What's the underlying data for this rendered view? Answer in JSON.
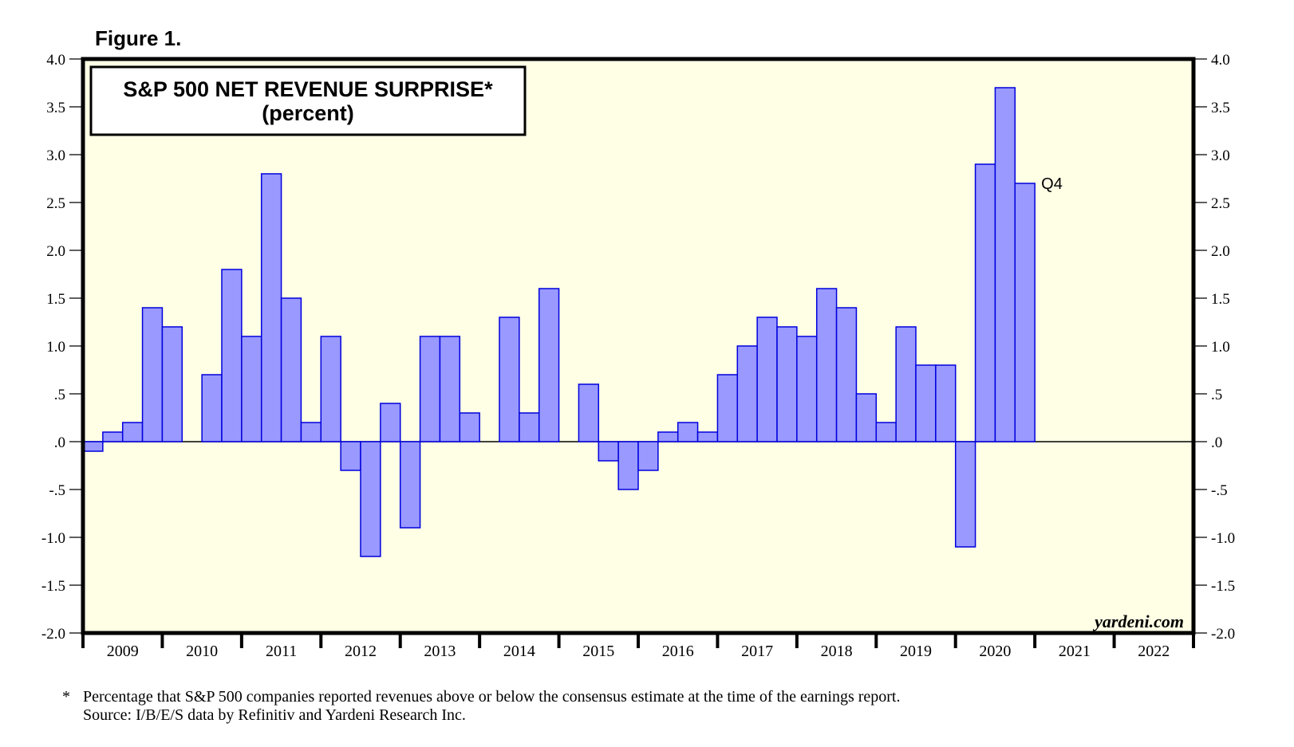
{
  "figure_label": "Figure 1.",
  "brand": "yardeni.com",
  "footnote": {
    "marker": "*",
    "line1": "Percentage that S&P 500 companies reported revenues above or below the consensus estimate at the time of the earnings report.",
    "line2": "Source: I/B/E/S data by Refinitiv and Yardeni Research Inc."
  },
  "colors": {
    "plot_background": "#ffffe6",
    "bar_fill": "#9999ff",
    "bar_stroke": "#0000dd",
    "axis": "#000000"
  },
  "chart_data": {
    "type": "bar",
    "title": "S&P 500 NET REVENUE SURPRISE*",
    "subtitle": "(percent)",
    "xlabel": "",
    "ylabel": "",
    "frequency": "quarterly",
    "ylim": [
      -2.0,
      4.0
    ],
    "yticks": [
      4.0,
      3.5,
      3.0,
      2.5,
      2.0,
      1.5,
      1.0,
      0.5,
      0.0,
      -0.5,
      -1.0,
      -1.5,
      -2.0
    ],
    "ytick_labels": [
      "4.0",
      "3.5",
      "3.0",
      "2.5",
      "2.0",
      "1.5",
      "1.0",
      ".5",
      ".0",
      "-.5",
      "-1.0",
      "-1.5",
      "-2.0"
    ],
    "years": [
      "2009",
      "2010",
      "2011",
      "2012",
      "2013",
      "2014",
      "2015",
      "2016",
      "2017",
      "2018",
      "2019",
      "2020",
      "2021",
      "2022"
    ],
    "grid": false,
    "y_axis_both_sides": true,
    "categories": [
      "2009 Q1",
      "2009 Q2",
      "2009 Q3",
      "2009 Q4",
      "2010 Q1",
      "2010 Q2",
      "2010 Q3",
      "2010 Q4",
      "2011 Q1",
      "2011 Q2",
      "2011 Q3",
      "2011 Q4",
      "2012 Q1",
      "2012 Q2",
      "2012 Q3",
      "2012 Q4",
      "2013 Q1",
      "2013 Q2",
      "2013 Q3",
      "2013 Q4",
      "2014 Q1",
      "2014 Q2",
      "2014 Q3",
      "2014 Q4",
      "2015 Q1",
      "2015 Q2",
      "2015 Q3",
      "2015 Q4",
      "2016 Q1",
      "2016 Q2",
      "2016 Q3",
      "2016 Q4",
      "2017 Q1",
      "2017 Q2",
      "2017 Q3",
      "2017 Q4",
      "2018 Q1",
      "2018 Q2",
      "2018 Q3",
      "2018 Q4",
      "2019 Q1",
      "2019 Q2",
      "2019 Q3",
      "2019 Q4",
      "2020 Q1",
      "2020 Q2",
      "2020 Q3",
      "2020 Q4"
    ],
    "values": [
      -0.1,
      0.1,
      0.2,
      1.4,
      1.2,
      0.0,
      0.7,
      1.8,
      1.1,
      2.8,
      1.5,
      0.2,
      1.1,
      -0.3,
      -1.2,
      0.4,
      -0.9,
      1.1,
      1.1,
      0.3,
      0.0,
      1.3,
      0.3,
      1.6,
      0.0,
      0.6,
      -0.2,
      -0.5,
      -0.3,
      0.1,
      0.2,
      0.1,
      0.7,
      1.0,
      1.3,
      1.2,
      1.1,
      1.6,
      1.4,
      0.5,
      0.2,
      1.2,
      0.8,
      0.8,
      -1.1,
      2.9,
      3.7,
      2.7
    ],
    "annotations": [
      {
        "text": "Q4",
        "attached_to": "2020 Q4"
      }
    ]
  }
}
